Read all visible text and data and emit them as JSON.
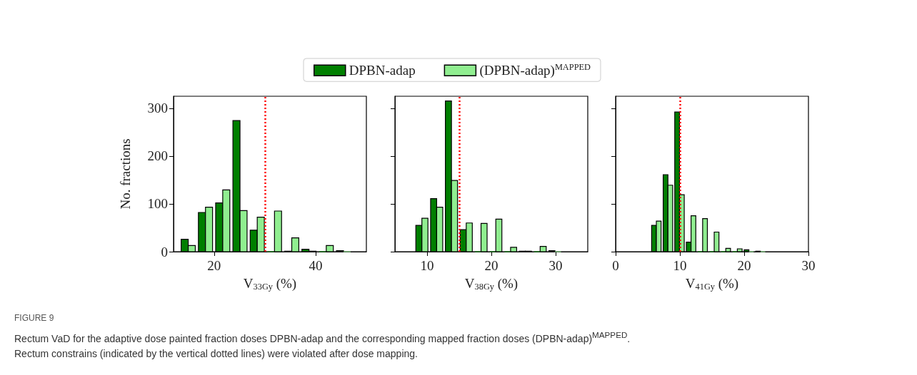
{
  "chart_data": [
    {
      "type": "histogram",
      "xlabel": "V$_{33Gy}$ (%)",
      "ylabel": "No. fractions",
      "legend": "top",
      "grid": false,
      "bins": [
        13.5,
        16.9,
        20.3,
        23.7,
        27.1,
        30.5,
        33.9,
        37.3,
        40.7,
        44.1,
        47.5
      ],
      "series": [
        {
          "name": "DPBN-adap",
          "color": "#007f00",
          "values": [
            26,
            82,
            102,
            274,
            45,
            0,
            1,
            5,
            0,
            2
          ]
        },
        {
          "name": "(DPBN-adap)$^{MAPPED}$",
          "color": "#90ee90",
          "values": [
            13,
            93,
            129,
            86,
            72,
            85,
            29,
            1,
            13,
            0
          ]
        }
      ],
      "xlim": [
        12,
        50
      ],
      "xticks": [
        20,
        40
      ],
      "ylim": [
        0,
        325
      ],
      "yticks": [
        0,
        100,
        200,
        300
      ],
      "ref_lines": [
        {
          "axis": "x",
          "value": 30,
          "label": null,
          "color": "#ff0000",
          "line_style": "dotted"
        }
      ],
      "annotations": [
        "FIGURE 9",
        "Rectum VaD for the adaptive dose painted fraction doses DPBN-adap and the corresponding mapped fraction doses (DPBN-adap)$^{MAPPED}$.",
        "Rectum constrains (indicated by the vertical dotted lines) were violated after dose mapping."
      ]
    },
    {
      "type": "histogram",
      "xlabel": "V$_{38Gy}$ (%)",
      "grid": false,
      "tick_labels": "x",
      "bins": [
        8.25,
        10.55,
        12.85,
        15.15,
        17.45,
        19.75,
        22.05,
        24.35,
        26.65,
        28.95,
        31.25
      ],
      "series": [
        {
          "color": "#007f00",
          "values": [
            55,
            111,
            315,
            46,
            0,
            0,
            0,
            1,
            0,
            2
          ]
        },
        {
          "color": "#90ee90",
          "values": [
            70,
            93,
            149,
            60,
            59,
            68,
            9,
            1,
            11,
            0
          ]
        }
      ],
      "xlim": [
        5,
        35
      ],
      "xticks": [
        10,
        20,
        30
      ],
      "ylim": [
        0,
        325
      ],
      "yticks": [
        0,
        100,
        200,
        300
      ],
      "ref_lines": [
        {
          "axis": "x",
          "value": 15,
          "label": null,
          "color": "#ff0000",
          "line_style": "dotted"
        }
      ]
    },
    {
      "type": "histogram",
      "xlabel": "V$_{41Gy}$ (%)",
      "grid": false,
      "tick_labels": "x",
      "bins": [
        5.6,
        7.4,
        9.2,
        11.0,
        12.8,
        14.6,
        16.4,
        18.2,
        20.0,
        21.8,
        23.6
      ],
      "series": [
        {
          "color": "#007f00",
          "values": [
            55,
            161,
            292,
            20,
            0,
            0,
            0,
            0,
            4,
            1
          ]
        },
        {
          "color": "#90ee90",
          "values": [
            64,
            139,
            119,
            75,
            69,
            41,
            7,
            6,
            0,
            0
          ]
        }
      ],
      "xlim": [
        0,
        30
      ],
      "xticks": [
        0,
        10,
        20,
        30
      ],
      "ylim": [
        0,
        325
      ],
      "yticks": [
        0,
        100,
        200,
        300
      ],
      "ref_lines": [
        {
          "axis": "x",
          "value": 10,
          "label": null,
          "color": "#ff0000",
          "line_style": "dotted"
        }
      ]
    }
  ]
}
